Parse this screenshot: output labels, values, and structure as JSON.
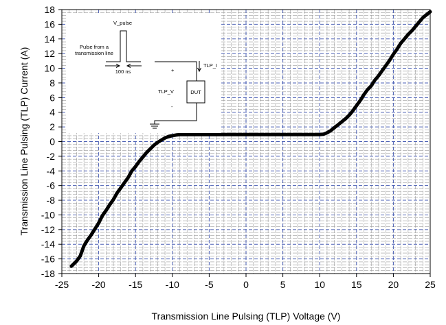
{
  "chart_data": {
    "type": "line",
    "xlabel": "Transmission Line Pulsing (TLP) Voltage (V)",
    "ylabel": "Transmission Line Pulsing (TLP) Current (A)",
    "xlim": [
      -25,
      25
    ],
    "ylim": [
      -18,
      18
    ],
    "x_ticks": [
      -25,
      -20,
      -15,
      -10,
      -5,
      0,
      5,
      10,
      15,
      20,
      25
    ],
    "y_ticks": [
      -18,
      -16,
      -14,
      -12,
      -10,
      -8,
      -6,
      -4,
      -2,
      0,
      2,
      4,
      6,
      8,
      10,
      12,
      14,
      16,
      18
    ],
    "grid": true,
    "legend": "none",
    "colors": {
      "grid_major": "#4a5fb4",
      "grid_minor": "#9a9a9a",
      "curve": "#000000"
    },
    "series": [
      {
        "x": [
          -23.7,
          -23.0,
          -22.5,
          -22.0,
          -21.5,
          -21.0,
          -20.5,
          -20.0,
          -19.5,
          -19.0,
          -18.5,
          -18.0,
          -17.5,
          -17.0,
          -16.5,
          -16.0,
          -15.5,
          -15.0,
          -14.5,
          -14.0,
          -13.5,
          -13.0,
          -12.5,
          -12.0,
          -11.5,
          -11.0,
          -10.5,
          -10.0,
          -9.5,
          -9.0,
          -5.0,
          0.0,
          5.0,
          10.0,
          10.5,
          11.0,
          11.5,
          12.0,
          12.5,
          13.0,
          13.5,
          14.0,
          14.5,
          15.0,
          15.5,
          16.0,
          16.5,
          17.0,
          17.5,
          18.0,
          18.5,
          19.0,
          19.5,
          20.0,
          20.5,
          21.0,
          21.5,
          22.0,
          22.5,
          23.0,
          23.5,
          24.0,
          24.5,
          25.0
        ],
        "y": [
          -17.0,
          -16.3,
          -15.6,
          -14.2,
          -13.4,
          -12.7,
          -11.9,
          -11.1,
          -10.1,
          -9.4,
          -8.6,
          -7.9,
          -7.0,
          -6.3,
          -5.6,
          -4.9,
          -4.0,
          -3.4,
          -2.7,
          -2.1,
          -1.5,
          -1.0,
          -0.5,
          -0.1,
          0.2,
          0.5,
          0.7,
          0.8,
          0.9,
          0.95,
          0.95,
          0.95,
          0.95,
          0.95,
          1.0,
          1.2,
          1.5,
          1.9,
          2.3,
          2.7,
          3.1,
          3.6,
          4.2,
          4.9,
          5.6,
          6.4,
          7.1,
          7.6,
          8.4,
          9.0,
          9.7,
          10.4,
          11.1,
          11.9,
          12.6,
          13.4,
          14.0,
          14.6,
          15.1,
          15.7,
          16.3,
          16.9,
          17.3,
          17.7
        ]
      }
    ],
    "inset": {
      "pulse_label": "V_pulse",
      "source_label": [
        "Pulse from a",
        "transmission line"
      ],
      "width_label": "100 ns",
      "plus_label": "+",
      "minus_label": "-",
      "voltage_label": "TLP_V",
      "current_label": "TLP_I",
      "device_label": "DUT"
    }
  }
}
